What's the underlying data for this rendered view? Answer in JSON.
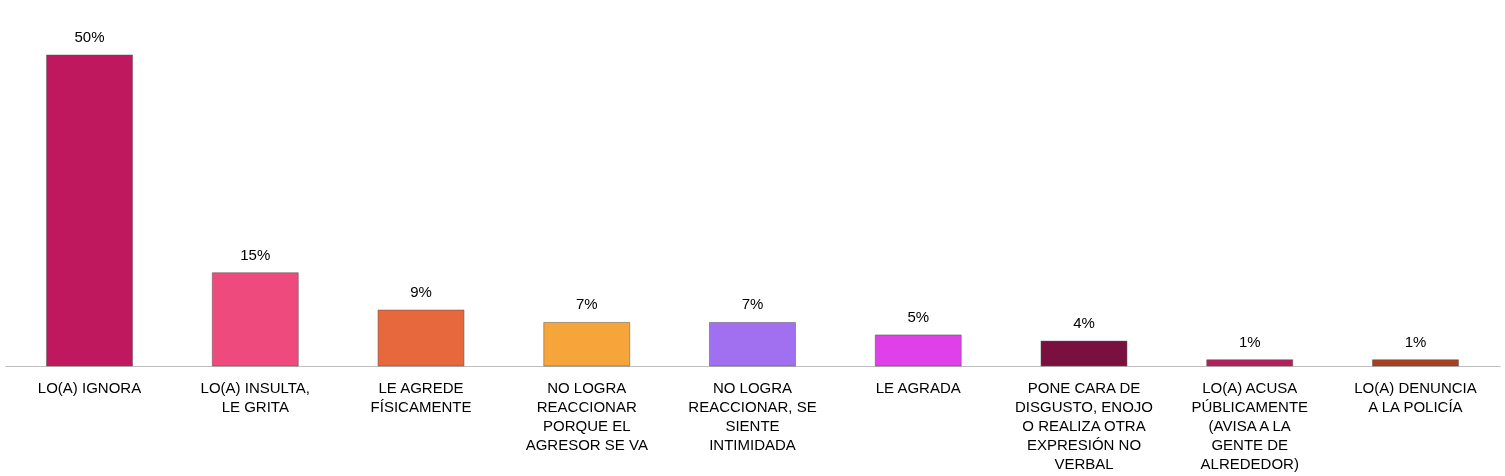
{
  "chart_data": {
    "type": "bar",
    "categories": [
      "LO(A) IGNORA",
      "LO(A) INSULTA, LE GRITA",
      "LE AGREDE FÍSICAMENTE",
      "NO LOGRA REACCIONAR PORQUE EL AGRESOR SE VA",
      "NO LOGRA REACCIONAR, SE SIENTE INTIMIDADA",
      "LE AGRADA",
      "PONE CARA DE DISGUSTO, ENOJO O REALIZA OTRA EXPRESIÓN NO VERBAL",
      "LO(A) ACUSA PÚBLICAMENTE (AVISA A LA GENTE DE ALREDEDOR)",
      "LO(A) DENUNCIA A LA POLICÍA"
    ],
    "values": [
      50,
      15,
      9,
      7,
      7,
      5,
      4,
      1,
      1
    ],
    "value_labels": [
      "50%",
      "15%",
      "9%",
      "7%",
      "7%",
      "5%",
      "4%",
      "1%",
      "1%"
    ],
    "colors": [
      "#c0185f",
      "#ef4a7e",
      "#e8683e",
      "#f5a53a",
      "#a070f0",
      "#e040e8",
      "#7a1040",
      "#b0205a",
      "#a84020"
    ],
    "grid": false
  }
}
